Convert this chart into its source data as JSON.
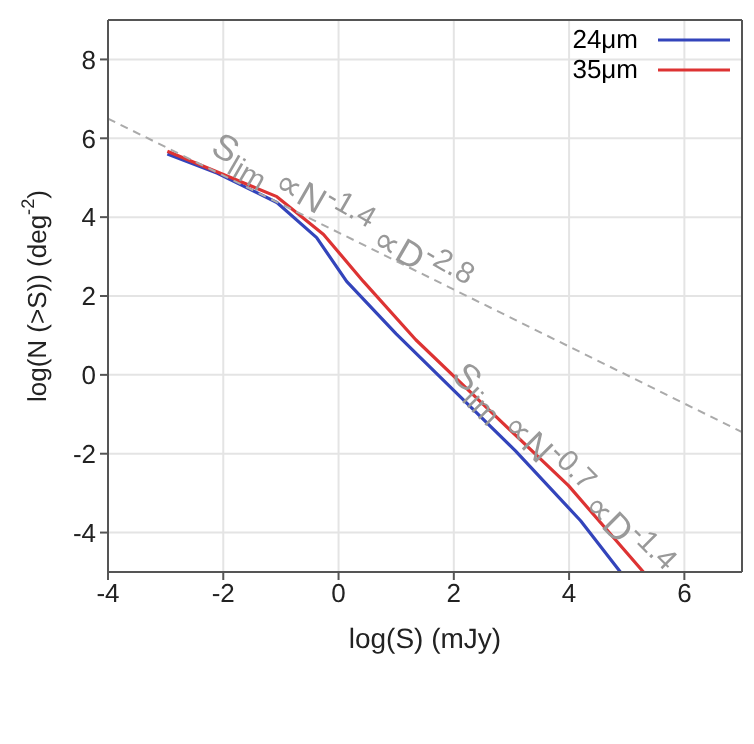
{
  "chart_data": {
    "type": "line",
    "xlabel": "log(S) (mJy)",
    "ylabel": "log(N (>S)) (deg$^{-2}$)",
    "xlim": [
      -4,
      7
    ],
    "xticks": [
      -4,
      -2,
      0,
      2,
      4,
      6
    ],
    "ylim": [
      -5,
      9
    ],
    "yticks": [
      -4,
      -2,
      0,
      2,
      4,
      6,
      8
    ],
    "grid": true,
    "legend": "top right",
    "series": [
      {
        "name": "24μm",
        "color": "#3344bb",
        "x": [
          -2.97,
          -2.1,
          -1.07,
          -0.38,
          0.14,
          1.0,
          2.03,
          3.07,
          4.2,
          4.89
        ],
        "values": [
          5.6,
          5.11,
          4.37,
          3.48,
          2.37,
          1.04,
          -0.44,
          -1.93,
          -3.7,
          -5.0
        ]
      },
      {
        "name": "35μm",
        "color": "#dd3333",
        "x": [
          -2.97,
          -1.07,
          -0.26,
          0.43,
          1.34,
          2.61,
          3.99,
          5.29
        ],
        "values": [
          5.67,
          4.52,
          3.56,
          2.37,
          0.89,
          -0.89,
          -2.81,
          -5.0
        ]
      },
      {
        "type": "line",
        "color": "#aaaaaa",
        "line_style": "dashed",
        "x": [
          -4,
          7
        ],
        "values": [
          6.5,
          -1.45
        ]
      }
    ],
    "annotations": [
      "S$_{lim}$ ∝N$^{-1.4}$ ∝D$^{-2.8}$",
      "S$_{lim}$ ∝N$^{-0.7}$ ∝D$^{-1.4}$"
    ]
  }
}
